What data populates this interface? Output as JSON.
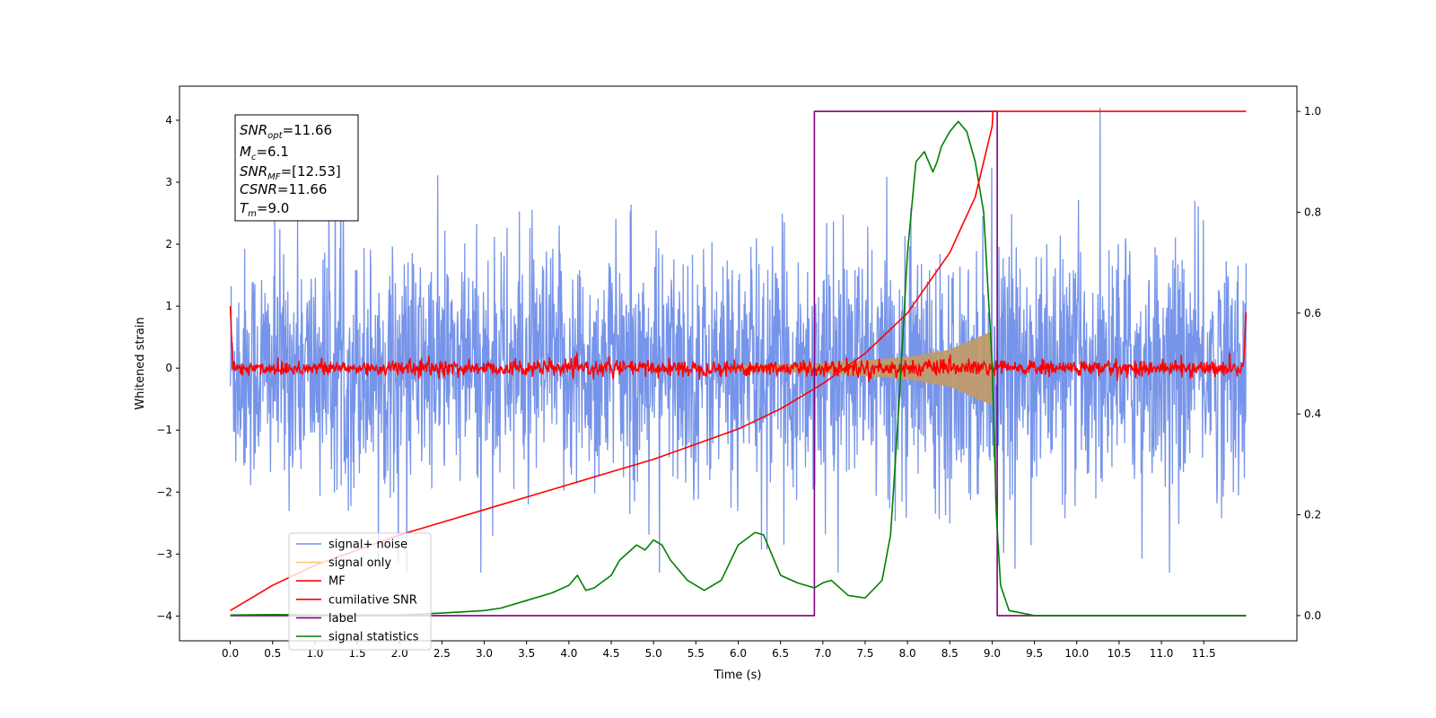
{
  "chart_data": {
    "type": "line",
    "xlabel": "Time (s)",
    "ylabel_left": "Whitened strain",
    "ylabel_right": "",
    "xlim": [
      -0.6,
      12.6
    ],
    "ylim_left": [
      -4.4,
      4.55
    ],
    "ylim_right": [
      -0.05,
      1.05
    ],
    "x_ticks": [
      "0.0",
      "0.5",
      "1.0",
      "1.5",
      "2.0",
      "2.5",
      "3.0",
      "3.5",
      "4.0",
      "4.5",
      "5.0",
      "5.5",
      "6.0",
      "6.5",
      "7.0",
      "7.5",
      "8.0",
      "8.5",
      "9.0",
      "9.5",
      "10.0",
      "10.5",
      "11.0",
      "11.5"
    ],
    "y_ticks_left": [
      "4",
      "3",
      "2",
      "1",
      "0",
      "−1",
      "−2",
      "−3",
      "−4"
    ],
    "y_ticks_right": [
      "1.0",
      "0.8",
      "0.6",
      "0.4",
      "0.2",
      "0.0"
    ],
    "grid": false,
    "legend_position": "lower-left",
    "info_box": {
      "snr_opt": {
        "main": "SNR",
        "sub": "opt",
        "value": "=11.66"
      },
      "mc": {
        "main": "M",
        "sub": "c",
        "value": "=6.1"
      },
      "snr_mf": {
        "main": "SNR",
        "sub": "MF",
        "value": "=[12.53]"
      },
      "csnr": {
        "main": "CSNR",
        "sub": "",
        "value": "=11.66"
      },
      "tm": {
        "main": "T",
        "sub": "m",
        "value": "=9.0"
      }
    },
    "series": [
      {
        "name": "signal+ noise",
        "color": "#6f8ee8",
        "axis": "left",
        "x_range": [
          0.0,
          12.0
        ],
        "envelope_approx": [
          -3.3,
          4.2
        ]
      },
      {
        "name": "signal only",
        "color": "#ffc966",
        "axis": "left",
        "x_range": [
          0.0,
          9.0
        ],
        "envelope_amplitude_x": [
          6.0,
          7.0,
          8.0,
          8.5,
          9.0
        ],
        "envelope_amplitude": [
          0.05,
          0.08,
          0.18,
          0.3,
          0.6
        ]
      },
      {
        "name": "MF",
        "color": "#ff0000",
        "axis": "left",
        "x_range": [
          0.0,
          12.0
        ],
        "noise_amplitude": 0.12,
        "edge_peak": 1.0
      },
      {
        "name": "cumilative SNR",
        "color": "#ff0000",
        "axis": "right",
        "x": [
          0.0,
          0.5,
          1.0,
          1.5,
          2.0,
          2.5,
          3.0,
          3.5,
          4.0,
          4.5,
          5.0,
          5.5,
          6.0,
          6.5,
          7.0,
          7.5,
          8.0,
          8.5,
          8.8,
          9.0,
          9.01,
          12.0
        ],
        "y": [
          0.01,
          0.06,
          0.1,
          0.13,
          0.16,
          0.185,
          0.21,
          0.235,
          0.26,
          0.285,
          0.31,
          0.34,
          0.37,
          0.41,
          0.46,
          0.52,
          0.6,
          0.72,
          0.83,
          0.97,
          1.0,
          1.0
        ]
      },
      {
        "name": "label",
        "color": "#800080",
        "axis": "right",
        "x": [
          0.0,
          6.9,
          6.9,
          9.0,
          9.0,
          9.06,
          9.06,
          12.0
        ],
        "y": [
          0.0,
          0.0,
          1.0,
          1.0,
          1.0,
          1.0,
          0.0,
          0.0
        ]
      },
      {
        "name": "signal statistics",
        "color": "#008000",
        "axis": "right",
        "x": [
          0.0,
          0.5,
          1.0,
          1.5,
          2.0,
          2.5,
          3.0,
          3.2,
          3.5,
          3.8,
          4.0,
          4.1,
          4.2,
          4.3,
          4.5,
          4.6,
          4.8,
          4.9,
          5.0,
          5.1,
          5.2,
          5.4,
          5.6,
          5.8,
          6.0,
          6.2,
          6.3,
          6.5,
          6.7,
          6.9,
          7.0,
          7.1,
          7.3,
          7.5,
          7.7,
          7.8,
          7.9,
          8.0,
          8.1,
          8.2,
          8.3,
          8.35,
          8.4,
          8.5,
          8.6,
          8.7,
          8.8,
          8.9,
          9.0,
          9.05,
          9.1,
          9.2,
          9.5,
          10.0,
          11.0,
          12.0
        ],
        "y": [
          0.001,
          0.002,
          0.001,
          0.001,
          0.001,
          0.005,
          0.01,
          0.015,
          0.03,
          0.045,
          0.06,
          0.08,
          0.05,
          0.055,
          0.08,
          0.11,
          0.14,
          0.13,
          0.15,
          0.14,
          0.11,
          0.07,
          0.05,
          0.07,
          0.14,
          0.165,
          0.16,
          0.08,
          0.065,
          0.055,
          0.065,
          0.07,
          0.04,
          0.035,
          0.07,
          0.16,
          0.42,
          0.72,
          0.9,
          0.92,
          0.88,
          0.9,
          0.93,
          0.96,
          0.98,
          0.96,
          0.9,
          0.8,
          0.5,
          0.2,
          0.06,
          0.01,
          0.0,
          0.0,
          0.0,
          0.0
        ]
      }
    ]
  }
}
